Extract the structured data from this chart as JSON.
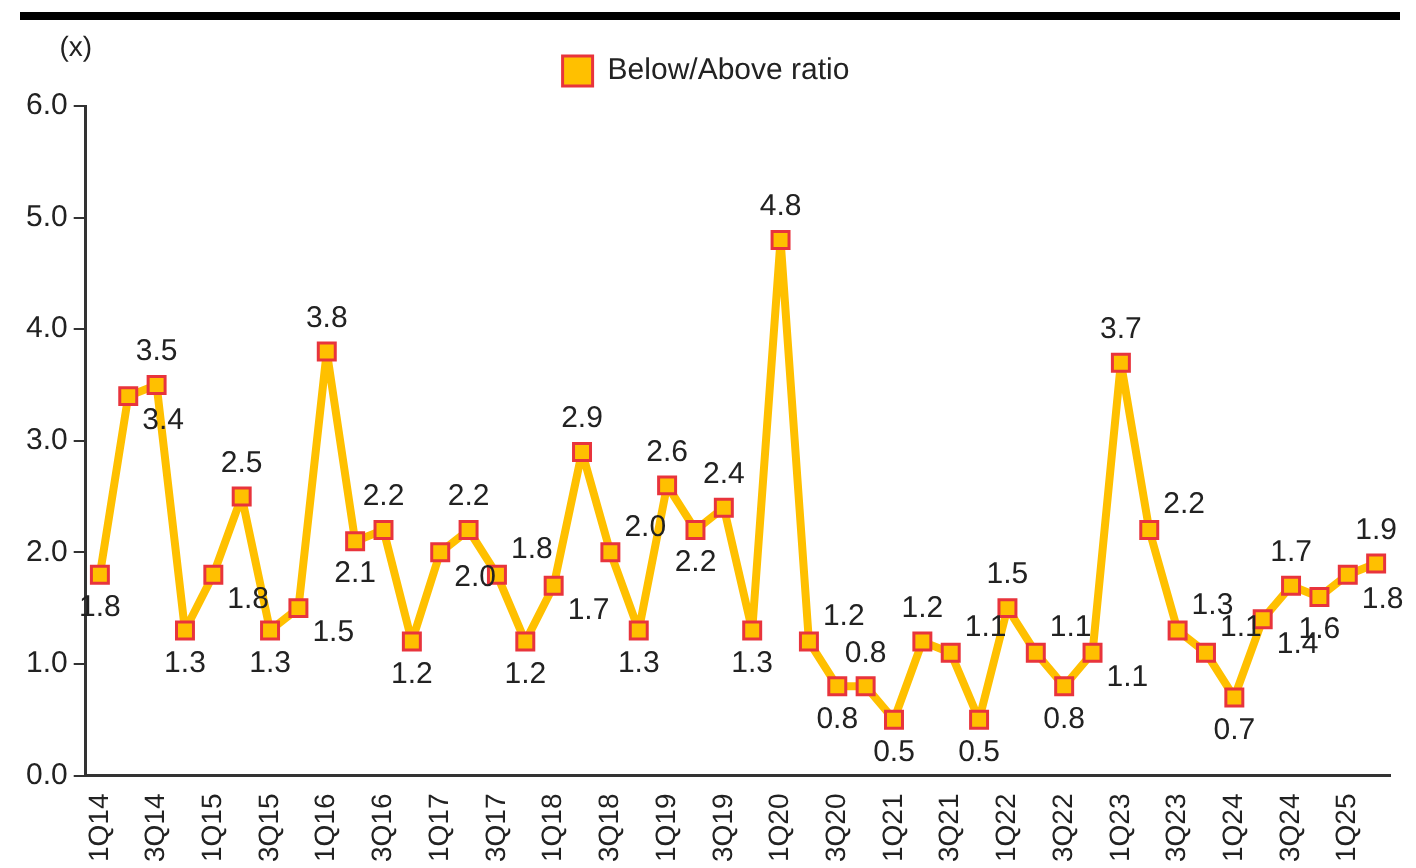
{
  "chart_data": {
    "type": "line",
    "ylabel": "(x)",
    "categories": [
      "1Q14",
      null,
      "3Q14",
      null,
      "1Q15",
      null,
      "3Q15",
      null,
      "1Q16",
      null,
      "3Q16",
      null,
      "1Q17",
      null,
      "3Q17",
      null,
      "1Q18",
      null,
      "3Q18",
      null,
      "1Q19",
      null,
      "3Q19",
      null,
      "1Q20",
      null,
      "3Q20",
      null,
      "1Q21",
      null,
      "3Q21",
      null,
      "1Q22",
      null,
      "3Q22",
      null,
      "1Q23",
      null,
      "3Q23",
      null,
      "1Q24",
      null,
      "3Q24",
      null,
      "1Q25",
      null
    ],
    "series": [
      {
        "name": "Below/Above ratio",
        "color": "#ffc000",
        "values": [
          1.8,
          3.4,
          3.5,
          1.3,
          1.8,
          2.5,
          1.3,
          1.5,
          3.8,
          2.1,
          2.2,
          1.2,
          2.0,
          2.2,
          1.8,
          1.2,
          1.7,
          2.9,
          2.0,
          1.3,
          2.6,
          2.2,
          2.4,
          1.3,
          4.8,
          1.2,
          0.8,
          0.8,
          0.5,
          1.2,
          1.1,
          0.5,
          1.5,
          1.1,
          0.8,
          1.1,
          3.7,
          2.2,
          1.3,
          1.1,
          0.7,
          1.4,
          1.7,
          1.6,
          1.8,
          1.9
        ],
        "value_labels": [
          "1.8",
          "3.4",
          "3.5",
          "1.3",
          "1.8",
          "2.5",
          "1.3",
          "1.5",
          "3.8",
          "2.1",
          "2.2",
          "1.2",
          "2.0",
          "2.2",
          "1.8",
          "1.2",
          "1.7",
          "2.9",
          "2.0",
          "1.3",
          "2.6",
          "2.2",
          "2.4",
          "1.3",
          "4.8",
          "1.2",
          "0.8",
          "0.8",
          "0.5",
          "1.2",
          "1.1",
          "0.5",
          "1.5",
          "1.1",
          "0.8",
          "1.1",
          "3.7",
          "2.2",
          "1.3",
          "1.1",
          "0.7",
          "1.4",
          "1.7",
          "1.6",
          "1.8",
          "1.9"
        ]
      }
    ],
    "ylim": [
      0,
      6
    ],
    "yticks": [
      {
        "value": 0,
        "label": "0.0"
      },
      {
        "value": 1,
        "label": "1.0"
      },
      {
        "value": 2,
        "label": "2.0"
      },
      {
        "value": 3,
        "label": "3.0"
      },
      {
        "value": 4,
        "label": "4.0"
      },
      {
        "value": 5,
        "label": "5.0"
      },
      {
        "value": 6,
        "label": "6.0"
      }
    ],
    "grid": false,
    "legend": "top",
    "marker": "square",
    "line_style": "solid",
    "data_labels": true
  }
}
